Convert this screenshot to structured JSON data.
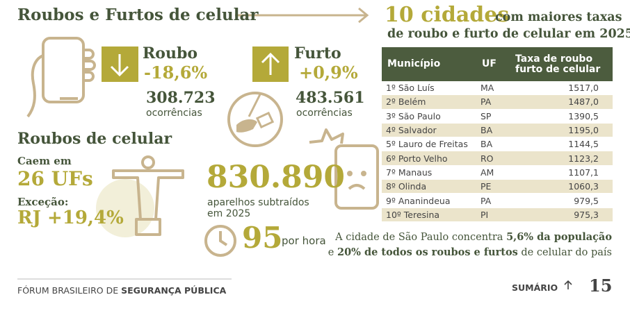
{
  "header": {
    "title": "Roubos e Furtos de celular"
  },
  "roubo": {
    "label": "Roubo",
    "change": "-18,6%",
    "count": "308.723",
    "unit": "ocorrências"
  },
  "furto": {
    "label": "Furto",
    "change": "+0,9%",
    "count": "483.561",
    "unit": "ocorrências"
  },
  "roubos_celular": {
    "title": "Roubos de celular",
    "caem_em": "Caem em",
    "ufs": "26 UFs",
    "excecao": "Exceção:",
    "rj": "RJ +19,4%",
    "total": "830.890",
    "total_desc": [
      "aparelhos subtraídos",
      "em 2025"
    ],
    "per_hour": "95",
    "per_hour_label": "por hora"
  },
  "table": {
    "title_big": "10 cidades",
    "title_rest": [
      "com maiores taxas",
      "de roubo e furto de celular em 2025"
    ],
    "headers": {
      "municipio": "Município",
      "uf": "UF",
      "taxa": [
        "Taxa de roubo",
        "furto de celular"
      ]
    },
    "rows": [
      [
        "1º São Luís",
        "MA",
        "1517,0"
      ],
      [
        "2º Belém",
        "PA",
        "1487,0"
      ],
      [
        "3º São Paulo",
        "SP",
        "1390,5"
      ],
      [
        "4º Salvador",
        "BA",
        "1195,0"
      ],
      [
        "5º Lauro de Freitas",
        "BA",
        "1144,5"
      ],
      [
        "6º Porto Velho",
        "RO",
        "1123,2"
      ],
      [
        "7º Manaus",
        "AM",
        "1107,1"
      ],
      [
        "8º Olinda",
        "PE",
        "1060,3"
      ],
      [
        "9º Ananindeua",
        "PA",
        "979,5"
      ],
      [
        "10º Teresina",
        "PI",
        "975,3"
      ]
    ]
  },
  "note": {
    "line1": [
      "A cidade de São Paulo concentra ",
      "5,6% da população"
    ],
    "line2": [
      "e ",
      "20% de todos os roubos e furtos",
      " de celular do país"
    ]
  },
  "footer": {
    "org": "FÓRUM BRASILEIRO DE ",
    "org_bold": "SEGURANÇA PÚBLICA",
    "sumario": "SUMÁRIO",
    "page": "15"
  }
}
